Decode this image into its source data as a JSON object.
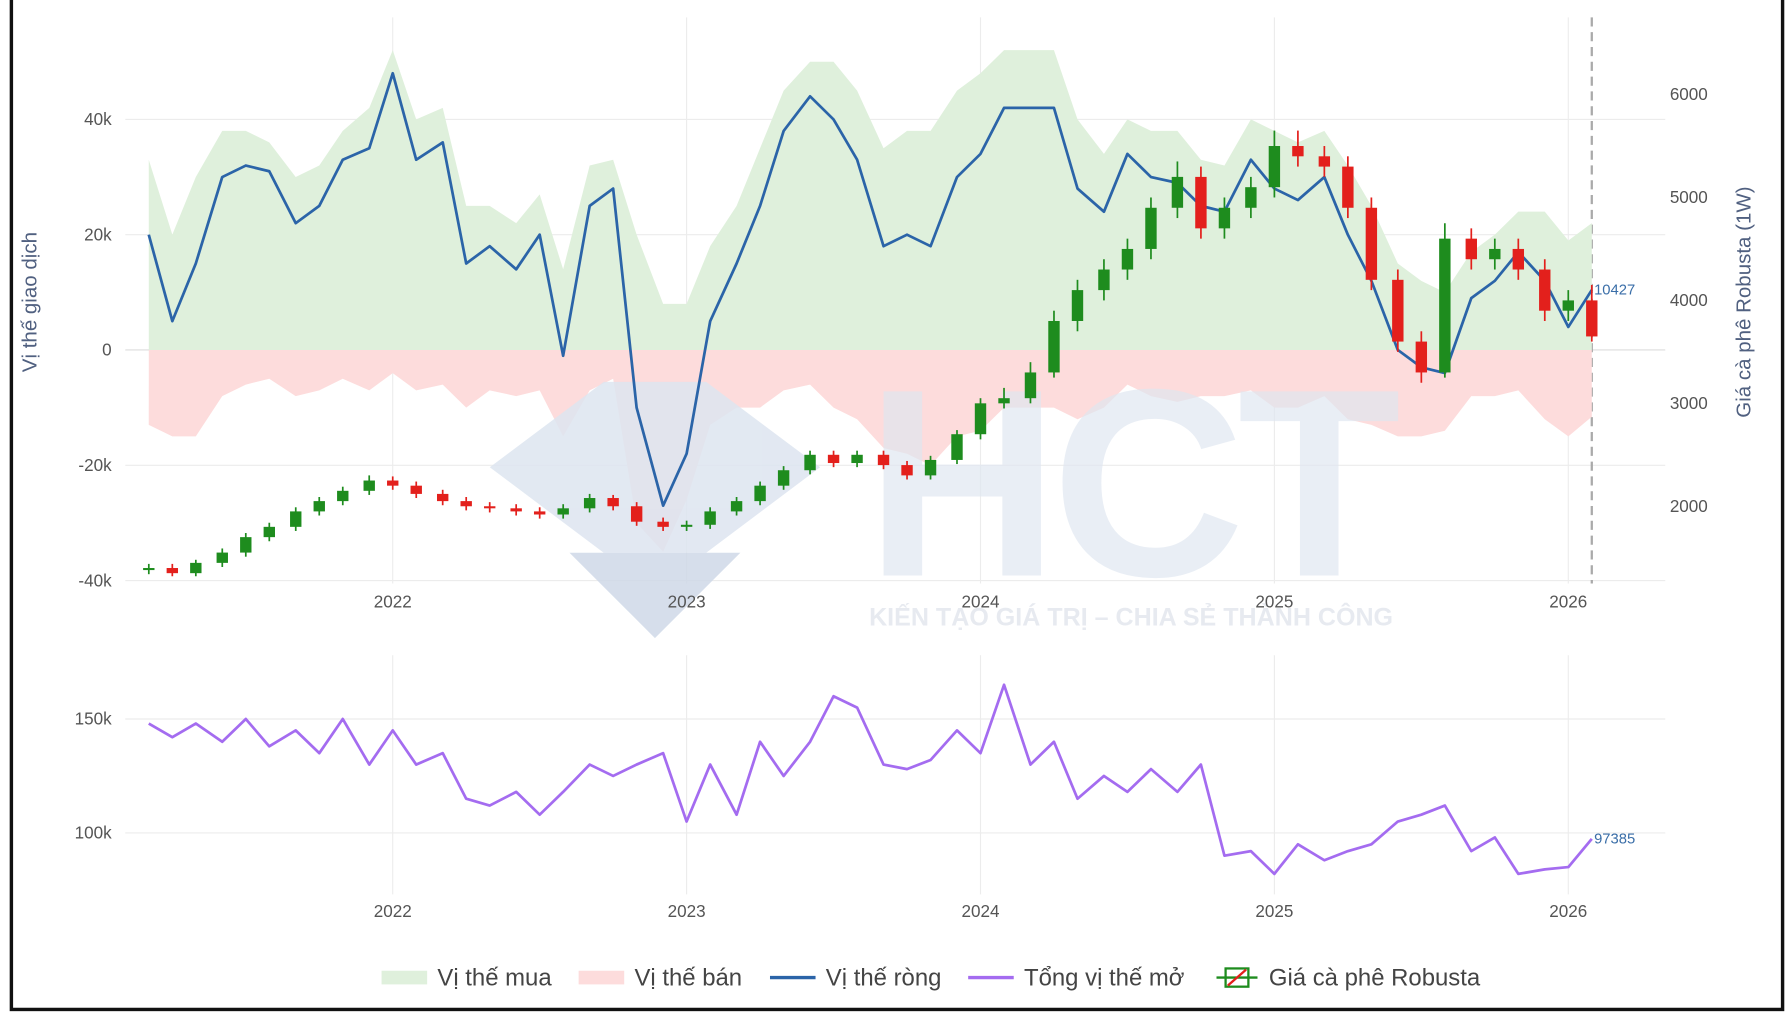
{
  "chart_data": [
    {
      "type": "combo",
      "ylabel": "Vị thế giao dịch",
      "y2label": "Giá cà phê Robusta (1W)",
      "watermark": {
        "logo": "HCT",
        "slogan": "KIẾN TẠO GIÁ TRỊ – CHIA SẺ THÀNH CÔNG"
      },
      "x": [
        2021.17,
        2021.25,
        2021.33,
        2021.42,
        2021.5,
        2021.58,
        2021.67,
        2021.75,
        2021.83,
        2021.92,
        2022,
        2022.08,
        2022.17,
        2022.25,
        2022.33,
        2022.42,
        2022.5,
        2022.58,
        2022.67,
        2022.75,
        2022.83,
        2022.92,
        2023,
        2023.08,
        2023.17,
        2023.25,
        2023.33,
        2023.42,
        2023.5,
        2023.58,
        2023.67,
        2023.75,
        2023.83,
        2023.92,
        2024,
        2024.08,
        2024.17,
        2024.25,
        2024.33,
        2024.42,
        2024.5,
        2024.58,
        2024.67,
        2024.75,
        2024.83,
        2024.92,
        2025,
        2025.08,
        2025.17,
        2025.25,
        2025.33,
        2025.42,
        2025.5,
        2025.58,
        2025.67,
        2025.75,
        2025.83,
        2025.92,
        2026,
        2026.08
      ],
      "xlim": [
        2021.09,
        2026.33
      ],
      "xticks": [
        2022,
        2023,
        2024,
        2025,
        2026
      ],
      "ylim": [
        -40500,
        57700
      ],
      "yticks": [
        {
          "value": -40000,
          "label": "-40k"
        },
        {
          "value": -20000,
          "label": "-20k"
        },
        0,
        {
          "value": 20000,
          "label": "20k"
        },
        {
          "value": 40000,
          "label": "40k"
        }
      ],
      "y2lim": [
        1250,
        6750
      ],
      "y2ticks": [
        2000,
        3000,
        4000,
        5000,
        6000
      ],
      "grid": true,
      "series": [
        {
          "name": "Vị thế mua",
          "type": "area",
          "color": "#dff0dc",
          "values": [
            33000,
            20000,
            30000,
            38000,
            38000,
            36000,
            30000,
            32000,
            38000,
            42000,
            52000,
            40000,
            42000,
            25000,
            25000,
            22000,
            27000,
            14000,
            32000,
            33000,
            20000,
            8000,
            8000,
            18000,
            25000,
            35000,
            45000,
            50000,
            50000,
            45000,
            35000,
            38000,
            38000,
            45000,
            48000,
            52000,
            52000,
            52000,
            40000,
            34000,
            40000,
            38000,
            38000,
            33000,
            32000,
            40000,
            38000,
            36000,
            38000,
            32000,
            25000,
            15000,
            12000,
            10000,
            17000,
            20000,
            24000,
            24000,
            19000,
            22000
          ]
        },
        {
          "name": "Vị thế bán",
          "type": "area",
          "color": "#fddcdc",
          "values": [
            -13000,
            -15000,
            -15000,
            -8000,
            -6000,
            -5000,
            -8000,
            -7000,
            -5000,
            -7000,
            -4000,
            -7000,
            -6000,
            -10000,
            -7000,
            -8000,
            -7000,
            -15000,
            -7000,
            -5000,
            -30000,
            -35000,
            -26000,
            -13000,
            -10000,
            -10000,
            -7000,
            -6000,
            -10000,
            -12000,
            -17000,
            -18000,
            -20000,
            -15000,
            -14000,
            -10000,
            -10000,
            -10000,
            -12000,
            -10000,
            -6000,
            -8000,
            -9000,
            -8000,
            -8000,
            -7000,
            -10000,
            -10000,
            -8000,
            -12000,
            -13000,
            -15000,
            -15000,
            -14000,
            -8000,
            -8000,
            -7000,
            -12000,
            -15000,
            -11573
          ]
        },
        {
          "name": "Vị thế ròng",
          "type": "line",
          "color": "#2b64a8",
          "values": [
            20000,
            5000,
            15000,
            30000,
            32000,
            31000,
            22000,
            25000,
            33000,
            35000,
            48000,
            33000,
            36000,
            15000,
            18000,
            14000,
            20000,
            -1000,
            25000,
            28000,
            -10000,
            -27000,
            -18000,
            5000,
            15000,
            25000,
            38000,
            44000,
            40000,
            33000,
            18000,
            20000,
            18000,
            30000,
            34000,
            42000,
            42000,
            42000,
            28000,
            24000,
            34000,
            30000,
            29000,
            25000,
            24000,
            33000,
            28000,
            26000,
            30000,
            20000,
            12000,
            0,
            -3000,
            -4000,
            9000,
            12000,
            17000,
            12000,
            4000,
            10427
          ]
        },
        {
          "name": "Giá cà phê Robusta",
          "type": "candlestick",
          "axis": "y2",
          "up_color": "#1e8c1e",
          "down_color": "#e3201c",
          "open": [
            1380,
            1400,
            1350,
            1450,
            1550,
            1700,
            1800,
            1950,
            2050,
            2150,
            2250,
            2200,
            2120,
            2050,
            2000,
            1980,
            1950,
            1920,
            1980,
            2080,
            2000,
            1850,
            1800,
            1820,
            1950,
            2050,
            2200,
            2350,
            2500,
            2420,
            2500,
            2400,
            2300,
            2450,
            2700,
            3000,
            3050,
            3300,
            3800,
            4100,
            4300,
            4500,
            4900,
            5200,
            4700,
            4900,
            5100,
            5500,
            5400,
            5300,
            4900,
            4200,
            3600,
            3300,
            4600,
            4400,
            4500,
            4300,
            3900,
            4000
          ],
          "high": [
            1440,
            1440,
            1480,
            1590,
            1740,
            1840,
            1990,
            2090,
            2190,
            2300,
            2290,
            2240,
            2160,
            2090,
            2040,
            2020,
            1990,
            2020,
            2120,
            2110,
            2040,
            1890,
            1860,
            1990,
            2090,
            2240,
            2390,
            2540,
            2540,
            2540,
            2540,
            2440,
            2490,
            2740,
            3050,
            3150,
            3400,
            3900,
            4200,
            4400,
            4600,
            5000,
            5350,
            5300,
            5000,
            5200,
            5650,
            5650,
            5500,
            5400,
            5000,
            4300,
            3700,
            4750,
            4700,
            4600,
            4600,
            4400,
            4100,
            4150
          ],
          "low": [
            1340,
            1320,
            1320,
            1410,
            1510,
            1660,
            1760,
            1910,
            2010,
            2110,
            2160,
            2080,
            2010,
            1960,
            1940,
            1910,
            1880,
            1880,
            1940,
            1960,
            1810,
            1760,
            1760,
            1780,
            1910,
            2010,
            2160,
            2310,
            2380,
            2380,
            2360,
            2260,
            2260,
            2410,
            2650,
            2950,
            3000,
            3250,
            3700,
            4000,
            4200,
            4400,
            4800,
            4600,
            4600,
            4800,
            5000,
            5300,
            5200,
            4800,
            4100,
            3500,
            3200,
            3250,
            4300,
            4300,
            4200,
            3800,
            3800,
            3600
          ],
          "close": [
            1400,
            1350,
            1450,
            1550,
            1700,
            1800,
            1950,
            2050,
            2150,
            2250,
            2200,
            2120,
            2050,
            2000,
            1980,
            1950,
            1920,
            1980,
            2080,
            2000,
            1850,
            1800,
            1820,
            1950,
            2050,
            2200,
            2350,
            2500,
            2420,
            2500,
            2400,
            2300,
            2450,
            2700,
            3000,
            3050,
            3300,
            3800,
            4100,
            4300,
            4500,
            4900,
            5200,
            4700,
            4900,
            5100,
            5500,
            5400,
            5300,
            4900,
            4200,
            3600,
            3300,
            4600,
            4400,
            4500,
            4300,
            3900,
            4000,
            3650
          ]
        }
      ]
    },
    {
      "type": "line",
      "x": [
        2021.17,
        2021.25,
        2021.33,
        2021.42,
        2021.5,
        2021.58,
        2021.67,
        2021.75,
        2021.83,
        2021.92,
        2022,
        2022.08,
        2022.17,
        2022.25,
        2022.33,
        2022.42,
        2022.5,
        2022.58,
        2022.67,
        2022.75,
        2022.83,
        2022.92,
        2023,
        2023.08,
        2023.17,
        2023.25,
        2023.33,
        2023.42,
        2023.5,
        2023.58,
        2023.67,
        2023.75,
        2023.83,
        2023.92,
        2024,
        2024.08,
        2024.17,
        2024.25,
        2024.33,
        2024.42,
        2024.5,
        2024.58,
        2024.67,
        2024.75,
        2024.83,
        2024.92,
        2025,
        2025.08,
        2025.17,
        2025.25,
        2025.33,
        2025.42,
        2025.5,
        2025.58,
        2025.67,
        2025.75,
        2025.83,
        2025.92,
        2026,
        2026.08
      ],
      "xlim": [
        2021.09,
        2026.33
      ],
      "xticks": [
        2022,
        2023,
        2024,
        2025,
        2026
      ],
      "ylim": [
        73000,
        178000
      ],
      "yticks": [
        {
          "value": 100000,
          "label": "100k"
        },
        {
          "value": 150000,
          "label": "150k"
        }
      ],
      "grid": true,
      "series": [
        {
          "name": "Tổng vị thế mở",
          "color": "#a46cf0",
          "values": [
            148000,
            142000,
            148000,
            140000,
            150000,
            138000,
            145000,
            135000,
            150000,
            130000,
            145000,
            130000,
            135000,
            115000,
            112000,
            118000,
            108000,
            118000,
            130000,
            125000,
            130000,
            135000,
            105000,
            130000,
            108000,
            140000,
            125000,
            140000,
            160000,
            155000,
            130000,
            128000,
            132000,
            145000,
            135000,
            165000,
            130000,
            140000,
            115000,
            125000,
            118000,
            128000,
            118000,
            130000,
            90000,
            92000,
            82000,
            95000,
            88000,
            92000,
            95000,
            105000,
            108000,
            112000,
            92000,
            98000,
            82000,
            84000,
            85000,
            97385
          ]
        }
      ]
    }
  ]
}
